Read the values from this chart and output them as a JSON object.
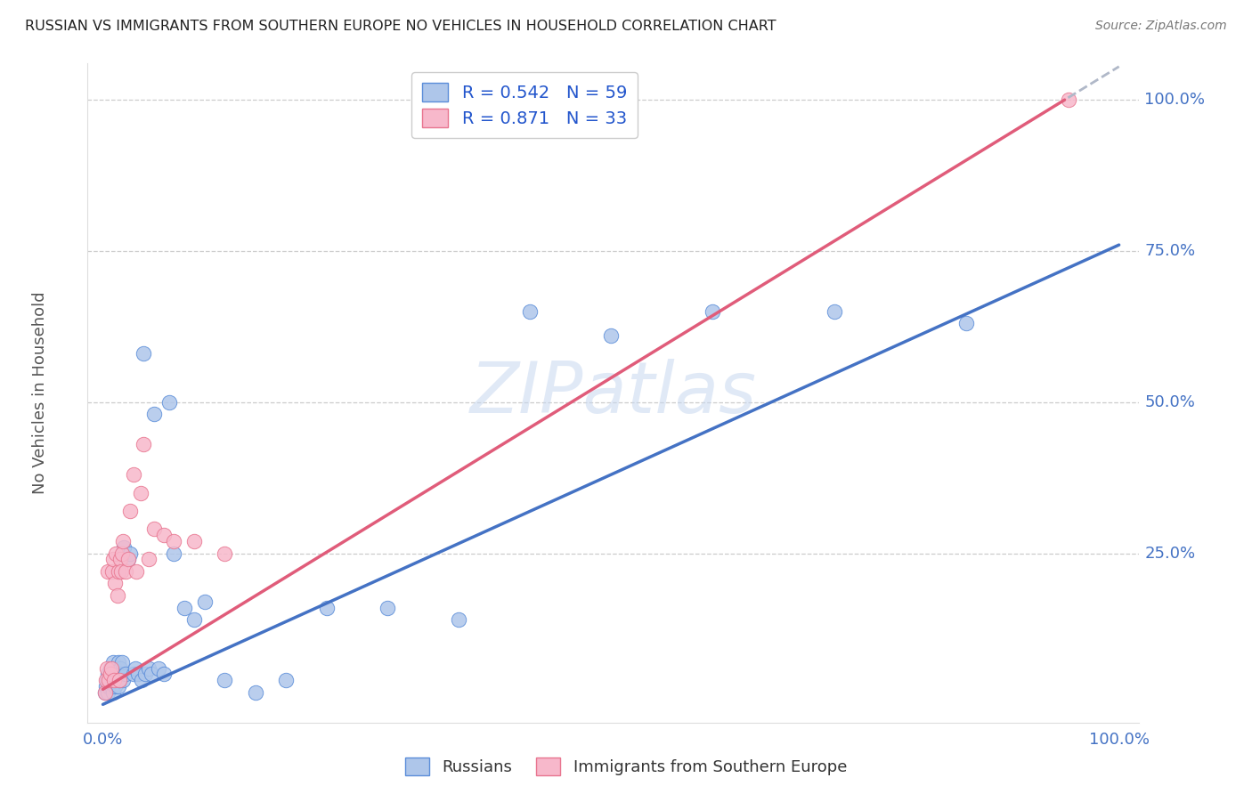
{
  "title": "RUSSIAN VS IMMIGRANTS FROM SOUTHERN EUROPE NO VEHICLES IN HOUSEHOLD CORRELATION CHART",
  "source": "Source: ZipAtlas.com",
  "ylabel": "No Vehicles in Household",
  "russian_R": "0.542",
  "russian_N": "59",
  "southern_R": "0.871",
  "southern_N": "33",
  "russian_color": "#aec6ea",
  "russian_edge_color": "#5b8dd9",
  "russian_line_color": "#4472c4",
  "southern_color": "#f7b8cb",
  "southern_edge_color": "#e8758f",
  "southern_line_color": "#e05c7a",
  "dash_line_color": "#b0b8c8",
  "watermark_color": "#c8d8f0",
  "background_color": "#ffffff",
  "legend_label_russian": "Russians",
  "legend_label_southern": "Immigrants from Southern Europe",
  "russian_scatter_x": [
    0.002,
    0.003,
    0.004,
    0.005,
    0.005,
    0.006,
    0.007,
    0.007,
    0.008,
    0.008,
    0.009,
    0.009,
    0.01,
    0.01,
    0.01,
    0.011,
    0.012,
    0.012,
    0.013,
    0.013,
    0.014,
    0.015,
    0.015,
    0.016,
    0.017,
    0.018,
    0.019,
    0.02,
    0.021,
    0.022,
    0.025,
    0.027,
    0.03,
    0.032,
    0.035,
    0.038,
    0.04,
    0.042,
    0.045,
    0.048,
    0.05,
    0.055,
    0.06,
    0.065,
    0.07,
    0.08,
    0.09,
    0.1,
    0.12,
    0.15,
    0.18,
    0.22,
    0.28,
    0.35,
    0.42,
    0.5,
    0.6,
    0.72,
    0.85
  ],
  "russian_scatter_y": [
    0.02,
    0.03,
    0.04,
    0.02,
    0.05,
    0.03,
    0.04,
    0.06,
    0.03,
    0.05,
    0.04,
    0.06,
    0.02,
    0.04,
    0.07,
    0.05,
    0.03,
    0.06,
    0.04,
    0.05,
    0.06,
    0.03,
    0.07,
    0.04,
    0.06,
    0.05,
    0.07,
    0.04,
    0.26,
    0.05,
    0.24,
    0.25,
    0.05,
    0.06,
    0.05,
    0.04,
    0.58,
    0.05,
    0.06,
    0.05,
    0.48,
    0.06,
    0.05,
    0.5,
    0.25,
    0.16,
    0.14,
    0.17,
    0.04,
    0.02,
    0.04,
    0.16,
    0.16,
    0.14,
    0.65,
    0.61,
    0.65,
    0.65,
    0.63
  ],
  "southern_scatter_x": [
    0.002,
    0.003,
    0.004,
    0.005,
    0.006,
    0.007,
    0.008,
    0.009,
    0.01,
    0.011,
    0.012,
    0.013,
    0.014,
    0.015,
    0.016,
    0.017,
    0.018,
    0.019,
    0.02,
    0.022,
    0.025,
    0.027,
    0.03,
    0.033,
    0.037,
    0.04,
    0.045,
    0.05,
    0.06,
    0.07,
    0.09,
    0.12,
    0.95
  ],
  "southern_scatter_y": [
    0.02,
    0.04,
    0.06,
    0.22,
    0.04,
    0.05,
    0.06,
    0.22,
    0.24,
    0.04,
    0.2,
    0.25,
    0.18,
    0.22,
    0.04,
    0.24,
    0.22,
    0.25,
    0.27,
    0.22,
    0.24,
    0.32,
    0.38,
    0.22,
    0.35,
    0.43,
    0.24,
    0.29,
    0.28,
    0.27,
    0.27,
    0.25,
    1.0
  ],
  "xlim": [
    0.0,
    1.0
  ],
  "ylim": [
    0.0,
    1.0
  ],
  "xtick_positions": [
    0.0,
    0.25,
    0.5,
    0.75,
    1.0
  ],
  "ytick_positions": [
    0.0,
    0.25,
    0.5,
    0.75,
    1.0
  ],
  "axis_label_color": "#4472c4",
  "grid_color": "#cccccc"
}
